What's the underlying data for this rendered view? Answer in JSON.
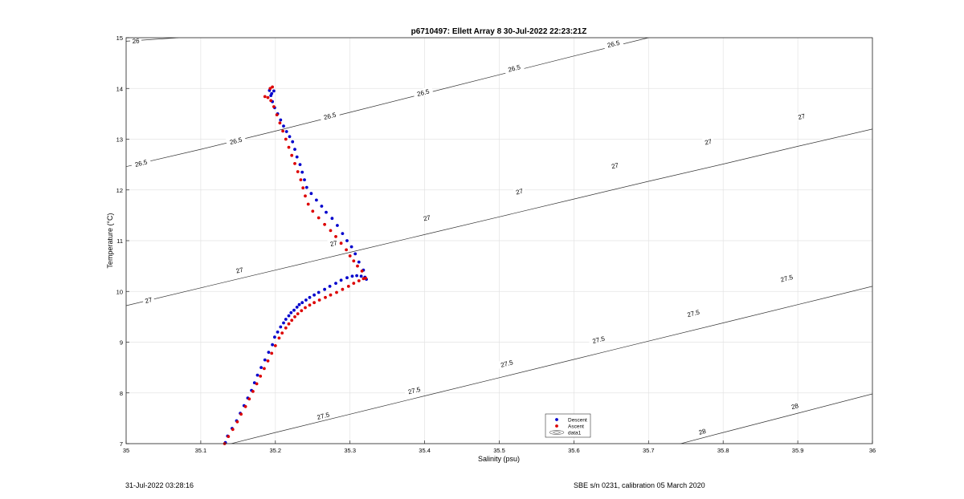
{
  "chart_data": {
    "type": "scatter",
    "title": "p6710497: Ellett Array 8 30-Jul-2022 22:23:21Z",
    "xlabel": "Salinity (psu)",
    "ylabel": "Temperature (°C)",
    "xlim": [
      35,
      36
    ],
    "ylim": [
      7,
      15
    ],
    "x_ticks": [
      "35",
      "35.1",
      "35.2",
      "35.3",
      "35.4",
      "35.5",
      "35.6",
      "35.7",
      "35.8",
      "35.9",
      "36"
    ],
    "y_ticks": [
      "7",
      "8",
      "9",
      "10",
      "11",
      "12",
      "13",
      "14",
      "15"
    ],
    "grid": true,
    "legend": {
      "position": "bottom-center",
      "entries": [
        "Descent",
        "Ascent",
        "data1"
      ]
    },
    "series": [
      {
        "name": "Descent",
        "color": "#0000cc",
        "x": [
          35.133,
          35.136,
          35.142,
          35.148,
          35.153,
          35.158,
          35.163,
          35.168,
          35.172,
          35.176,
          35.181,
          35.186,
          35.191,
          35.196,
          35.199,
          35.203,
          35.207,
          35.211,
          35.214,
          35.218,
          35.221,
          35.225,
          35.229,
          35.232,
          35.236,
          35.241,
          35.246,
          35.252,
          35.258,
          35.266,
          35.273,
          35.281,
          35.288,
          35.296,
          35.303,
          35.309,
          35.315,
          35.32,
          35.322,
          35.318,
          35.312,
          35.307,
          35.302,
          35.296,
          35.29,
          35.283,
          35.276,
          35.268,
          35.262,
          35.255,
          35.248,
          35.242,
          35.239,
          35.236,
          35.233,
          35.229,
          35.226,
          35.223,
          35.219,
          35.215,
          35.211,
          35.207,
          35.203,
          35.199,
          35.196,
          35.194,
          35.192,
          35.195,
          35.198
        ],
        "y": [
          7.02,
          7.15,
          7.3,
          7.45,
          7.6,
          7.75,
          7.9,
          8.05,
          8.2,
          8.35,
          8.5,
          8.65,
          8.8,
          8.95,
          9.1,
          9.2,
          9.3,
          9.38,
          9.45,
          9.52,
          9.58,
          9.63,
          9.69,
          9.74,
          9.78,
          9.83,
          9.88,
          9.93,
          9.98,
          10.04,
          10.1,
          10.16,
          10.22,
          10.27,
          10.3,
          10.31,
          10.3,
          10.28,
          10.24,
          10.42,
          10.58,
          10.74,
          10.88,
          11.0,
          11.14,
          11.3,
          11.44,
          11.56,
          11.68,
          11.8,
          11.93,
          12.05,
          12.2,
          12.35,
          12.5,
          12.65,
          12.8,
          12.95,
          13.05,
          13.15,
          13.26,
          13.38,
          13.5,
          13.62,
          13.74,
          13.86,
          13.96,
          13.9,
          13.95
        ]
      },
      {
        "name": "Ascent",
        "color": "#dd0000",
        "x": [
          35.132,
          35.137,
          35.143,
          35.149,
          35.154,
          35.16,
          35.165,
          35.17,
          35.175,
          35.18,
          35.185,
          35.19,
          35.195,
          35.2,
          35.205,
          35.209,
          35.214,
          35.218,
          35.222,
          35.226,
          35.23,
          35.235,
          35.24,
          35.246,
          35.252,
          35.259,
          35.267,
          35.274,
          35.282,
          35.29,
          35.298,
          35.305,
          35.312,
          35.318,
          35.321,
          35.316,
          35.31,
          35.305,
          35.3,
          35.295,
          35.288,
          35.281,
          35.274,
          35.266,
          35.258,
          35.25,
          35.244,
          35.24,
          35.237,
          35.234,
          35.23,
          35.226,
          35.222,
          35.218,
          35.214,
          35.21,
          35.206,
          35.202,
          35.198,
          35.194,
          35.19,
          35.186,
          35.193,
          35.196
        ],
        "y": [
          7.0,
          7.14,
          7.28,
          7.43,
          7.58,
          7.73,
          7.88,
          8.03,
          8.18,
          8.33,
          8.48,
          8.63,
          8.78,
          8.93,
          9.08,
          9.18,
          9.28,
          9.36,
          9.43,
          9.5,
          9.56,
          9.62,
          9.68,
          9.73,
          9.78,
          9.83,
          9.88,
          9.93,
          9.98,
          10.04,
          10.1,
          10.16,
          10.21,
          10.25,
          10.26,
          10.4,
          10.5,
          10.6,
          10.7,
          10.82,
          10.95,
          11.08,
          11.2,
          11.32,
          11.45,
          11.58,
          11.72,
          11.88,
          12.04,
          12.2,
          12.36,
          12.52,
          12.68,
          12.84,
          13.0,
          13.16,
          13.32,
          13.48,
          13.64,
          13.76,
          13.82,
          13.84,
          14.0,
          14.03
        ]
      }
    ],
    "isopycnals": [
      {
        "value": 26,
        "label": "26",
        "points": [
          [
            35.0,
            14.93
          ],
          [
            35.07,
            15.0
          ]
        ],
        "labels": [
          [
            35.013,
            14.94
          ]
        ]
      },
      {
        "value": 26.5,
        "label": "26.5",
        "points": [
          [
            35.0,
            12.46
          ],
          [
            35.1,
            12.8
          ],
          [
            35.2,
            13.16
          ],
          [
            35.3,
            13.53
          ],
          [
            35.4,
            13.9
          ],
          [
            35.5,
            14.27
          ],
          [
            35.6,
            14.64
          ],
          [
            35.7,
            15.0
          ]
        ],
        "labels": [
          [
            35.02,
            12.53
          ],
          [
            35.147,
            12.97
          ],
          [
            35.273,
            13.46
          ],
          [
            35.398,
            13.92
          ],
          [
            35.52,
            14.4
          ],
          [
            35.653,
            14.88
          ]
        ]
      },
      {
        "value": 27,
        "label": "27",
        "points": [
          [
            35.0,
            9.72
          ],
          [
            35.1,
            10.07
          ],
          [
            35.2,
            10.42
          ],
          [
            35.3,
            10.77
          ],
          [
            35.4,
            11.12
          ],
          [
            35.5,
            11.47
          ],
          [
            35.6,
            11.82
          ],
          [
            35.7,
            12.17
          ],
          [
            35.8,
            12.51
          ],
          [
            35.9,
            12.86
          ],
          [
            36.0,
            13.2
          ]
        ],
        "labels": [
          [
            35.03,
            9.83
          ],
          [
            35.152,
            10.42
          ],
          [
            35.278,
            10.95
          ],
          [
            35.403,
            11.45
          ],
          [
            35.527,
            11.97
          ],
          [
            35.655,
            12.48
          ],
          [
            35.78,
            12.95
          ],
          [
            35.905,
            13.45
          ]
        ]
      },
      {
        "value": 27.5,
        "label": "27.5",
        "points": [
          [
            35.1,
            6.85
          ],
          [
            35.2,
            7.22
          ],
          [
            35.3,
            7.58
          ],
          [
            35.4,
            7.94
          ],
          [
            35.5,
            8.3
          ],
          [
            35.6,
            8.66
          ],
          [
            35.7,
            9.02
          ],
          [
            35.8,
            9.38
          ],
          [
            35.9,
            9.74
          ],
          [
            36.0,
            10.1
          ],
          [
            36.1,
            10.46
          ]
        ],
        "labels": [
          [
            35.264,
            7.55
          ],
          [
            35.386,
            8.05
          ],
          [
            35.51,
            8.58
          ],
          [
            35.633,
            9.05
          ],
          [
            35.76,
            9.57
          ],
          [
            35.885,
            10.26
          ]
        ]
      },
      {
        "value": 28,
        "label": "28",
        "points": [
          [
            35.73,
            6.95
          ],
          [
            35.8,
            7.22
          ],
          [
            35.9,
            7.6
          ],
          [
            36.0,
            7.98
          ],
          [
            36.1,
            8.36
          ]
        ],
        "labels": [
          [
            35.772,
            7.24
          ],
          [
            35.896,
            7.74
          ]
        ]
      }
    ]
  },
  "footer": {
    "left": "31-Jul-2022 03:28:16",
    "right": "SBE s/n 0231, calibration 05 March 2020"
  }
}
